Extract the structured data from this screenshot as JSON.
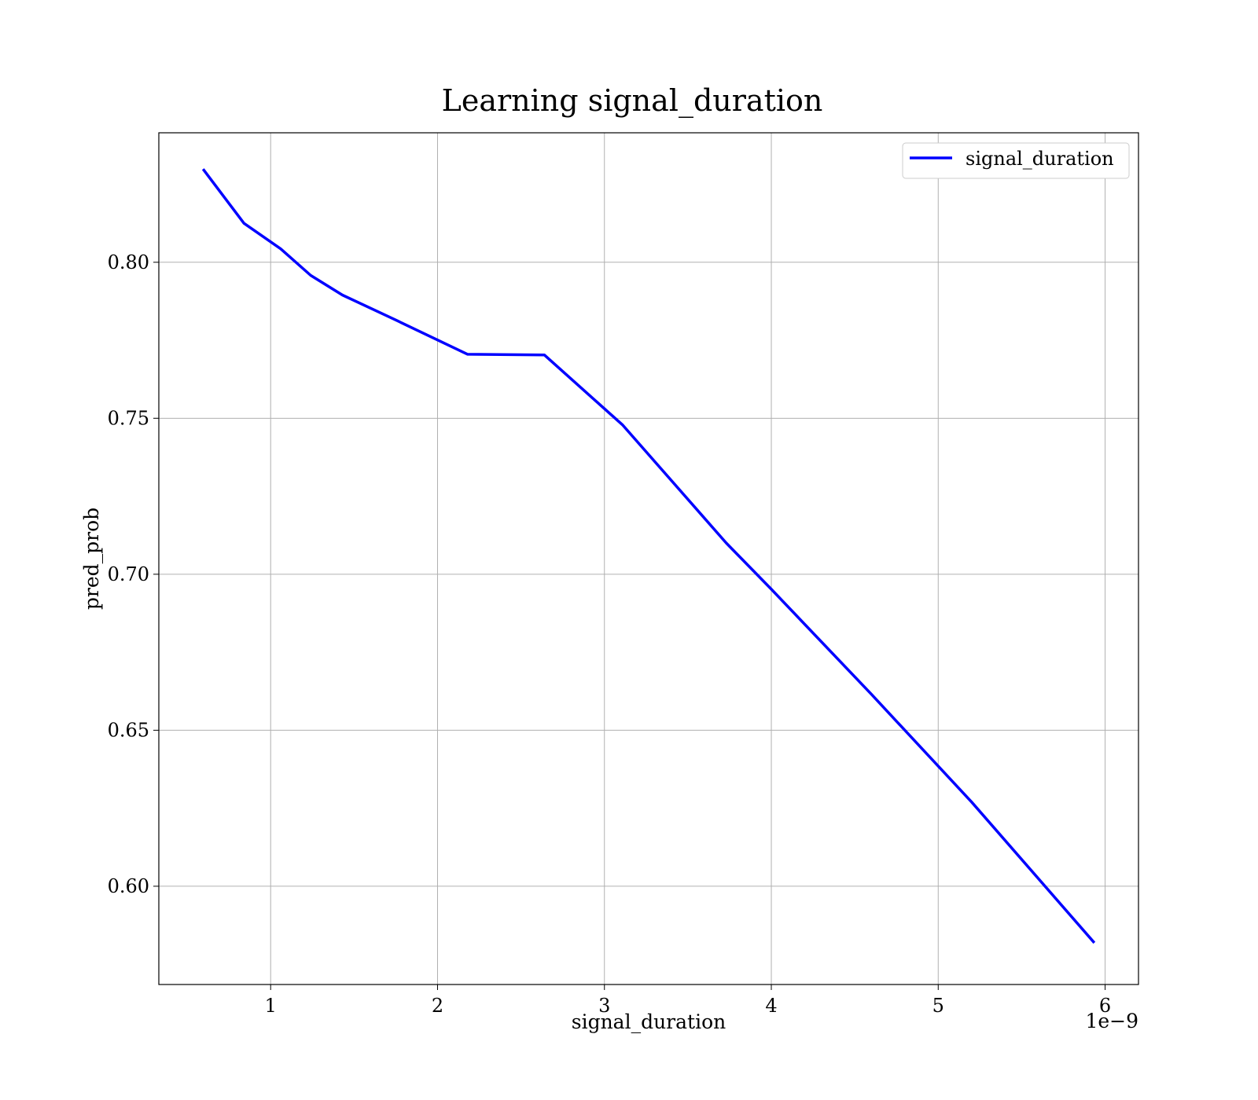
{
  "chart_data": {
    "type": "line",
    "title": "Learning signal_duration",
    "xlabel": "signal_duration",
    "ylabel": "pred_prob",
    "x_offset_text": "1e−9",
    "xlim": [
      0.33,
      6.2
    ],
    "ylim": [
      0.5685,
      0.8415
    ],
    "x_ticks": [
      1,
      2,
      3,
      4,
      5,
      6
    ],
    "x_tick_labels": [
      "1",
      "2",
      "3",
      "4",
      "5",
      "6"
    ],
    "y_ticks": [
      0.6,
      0.65,
      0.7,
      0.75,
      0.8
    ],
    "y_tick_labels": [
      "0.60",
      "0.65",
      "0.70",
      "0.75",
      "0.80"
    ],
    "grid": true,
    "legend_position": "top-right",
    "series": [
      {
        "name": "signal_duration",
        "color": "#0000ff",
        "x": [
          0.6,
          0.84,
          1.06,
          1.24,
          1.43,
          1.73,
          2.18,
          2.64,
          3.11,
          3.73,
          4.0,
          4.6,
          5.2,
          5.93
        ],
        "y": [
          0.8295,
          0.8125,
          0.8043,
          0.7958,
          0.7895,
          0.782,
          0.7705,
          0.7703,
          0.7478,
          0.71,
          0.6952,
          0.6615,
          0.627,
          0.5822
        ]
      }
    ]
  }
}
